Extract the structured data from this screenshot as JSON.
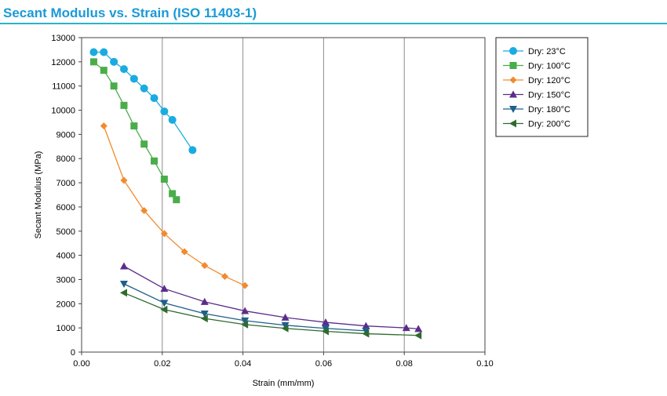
{
  "title": "Secant Modulus vs. Strain (ISO 11403-1)",
  "chart_data": {
    "type": "line",
    "xlabel": "Strain (mm/mm)",
    "ylabel": "Secant Modulus (MPa)",
    "xlim": [
      0,
      0.1
    ],
    "ylim": [
      0,
      13000
    ],
    "xticks": [
      "0.00",
      "0.02",
      "0.04",
      "0.06",
      "0.08",
      "0.10"
    ],
    "yticks": [
      "0",
      "1000",
      "2000",
      "3000",
      "4000",
      "5000",
      "6000",
      "7000",
      "8000",
      "9000",
      "10000",
      "11000",
      "12000",
      "13000"
    ],
    "grid": "vertical",
    "legend": "right",
    "series": [
      {
        "name": "Dry: 23°C",
        "color": "#1aabe0",
        "marker": "circle",
        "points": [
          [
            0.003,
            12400
          ],
          [
            0.0055,
            12400
          ],
          [
            0.008,
            12000
          ],
          [
            0.0105,
            11700
          ],
          [
            0.013,
            11300
          ],
          [
            0.0155,
            10900
          ],
          [
            0.018,
            10500
          ],
          [
            0.0205,
            9950
          ],
          [
            0.0225,
            9600
          ],
          [
            0.0275,
            8350
          ]
        ]
      },
      {
        "name": "Dry: 100°C",
        "color": "#4aad4a",
        "marker": "square",
        "points": [
          [
            0.003,
            12000
          ],
          [
            0.0055,
            11650
          ],
          [
            0.008,
            11000
          ],
          [
            0.0105,
            10200
          ],
          [
            0.013,
            9350
          ],
          [
            0.0155,
            8600
          ],
          [
            0.018,
            7900
          ],
          [
            0.0205,
            7150
          ],
          [
            0.0225,
            6550
          ],
          [
            0.0235,
            6300
          ]
        ]
      },
      {
        "name": "Dry: 120°C",
        "color": "#f28a2e",
        "marker": "diamond",
        "points": [
          [
            0.0055,
            9350
          ],
          [
            0.0105,
            7100
          ],
          [
            0.0155,
            5850
          ],
          [
            0.0205,
            4900
          ],
          [
            0.0255,
            4150
          ],
          [
            0.0305,
            3580
          ],
          [
            0.0355,
            3130
          ],
          [
            0.0405,
            2750
          ]
        ]
      },
      {
        "name": "Dry: 150°C",
        "color": "#5a2d8c",
        "marker": "triangle-up",
        "points": [
          [
            0.0105,
            3550
          ],
          [
            0.0205,
            2620
          ],
          [
            0.0305,
            2080
          ],
          [
            0.0405,
            1700
          ],
          [
            0.0505,
            1430
          ],
          [
            0.0605,
            1230
          ],
          [
            0.0705,
            1080
          ],
          [
            0.0805,
            1000
          ],
          [
            0.0835,
            960
          ]
        ]
      },
      {
        "name": "Dry: 180°C",
        "color": "#1e5f8c",
        "marker": "triangle-down",
        "points": [
          [
            0.0105,
            2820
          ],
          [
            0.0205,
            2030
          ],
          [
            0.0305,
            1590
          ],
          [
            0.0405,
            1300
          ],
          [
            0.0505,
            1110
          ],
          [
            0.0605,
            980
          ],
          [
            0.0705,
            880
          ]
        ]
      },
      {
        "name": "Dry: 200°C",
        "color": "#2f6b2f",
        "marker": "triangle-left",
        "points": [
          [
            0.0105,
            2450
          ],
          [
            0.0205,
            1760
          ],
          [
            0.0305,
            1390
          ],
          [
            0.0405,
            1140
          ],
          [
            0.0505,
            980
          ],
          [
            0.0605,
            860
          ],
          [
            0.0705,
            760
          ],
          [
            0.0835,
            690
          ]
        ]
      }
    ]
  }
}
